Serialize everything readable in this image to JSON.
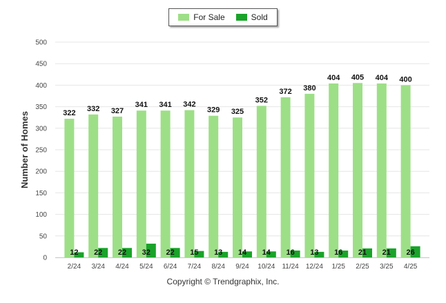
{
  "chart_data": {
    "type": "bar",
    "title": "",
    "xlabel": "",
    "ylabel": "Number of Homes",
    "ylim": [
      0,
      500
    ],
    "yticks": [
      0,
      50,
      100,
      150,
      200,
      250,
      300,
      350,
      400,
      450,
      500
    ],
    "grid": true,
    "legend_position": "top-center",
    "categories": [
      "2/24",
      "3/24",
      "4/24",
      "5/24",
      "6/24",
      "7/24",
      "8/24",
      "9/24",
      "10/24",
      "11/24",
      "12/24",
      "1/25",
      "2/25",
      "3/25",
      "4/25"
    ],
    "series": [
      {
        "name": "For Sale",
        "color": "#9ddf87",
        "values": [
          322,
          332,
          327,
          341,
          341,
          342,
          329,
          325,
          352,
          372,
          380,
          404,
          405,
          404,
          400
        ]
      },
      {
        "name": "Sold",
        "color": "#1aa32a",
        "values": [
          12,
          22,
          22,
          32,
          22,
          15,
          13,
          14,
          14,
          16,
          13,
          16,
          21,
          21,
          26
        ]
      }
    ]
  },
  "footer": {
    "copyright": "Copyright © Trendgraphix, Inc."
  }
}
